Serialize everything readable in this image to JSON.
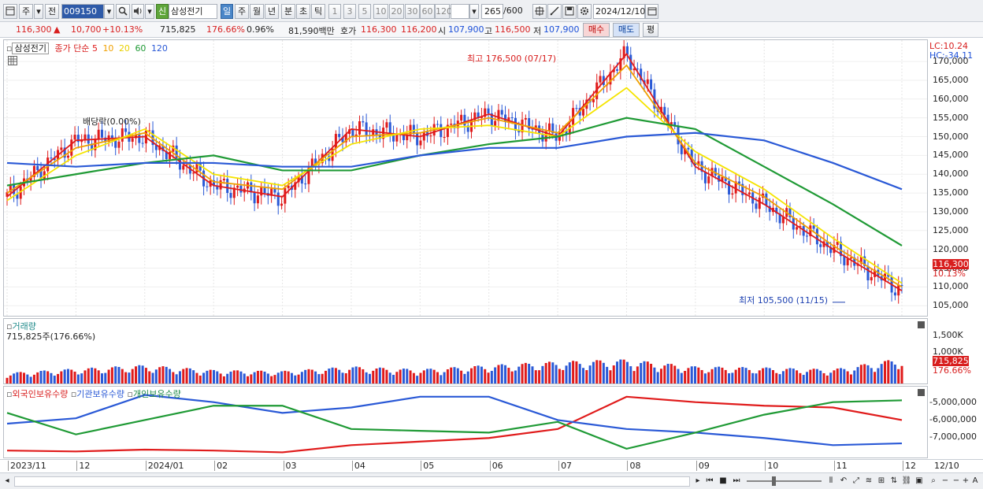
{
  "toolbar": {
    "type_label": "주",
    "prev_label": "전",
    "code": "009150",
    "shin_label": "신",
    "stock_name": "삼성전기",
    "periods": [
      "일",
      "주",
      "월",
      "년",
      "분",
      "초",
      "틱"
    ],
    "active_period": "일",
    "minute_values": [
      "1",
      "3",
      "5",
      "10",
      "20",
      "30",
      "60",
      "120"
    ],
    "count": "265",
    "count_max": "/600",
    "date": "2024/12/10",
    "icons": [
      "search-icon",
      "speaker-icon",
      "crosshair-icon",
      "draw-line-icon",
      "save-icon",
      "gear-icon",
      "calendar-icon"
    ]
  },
  "quote": {
    "price": "116,300",
    "up_arrow": "▲",
    "change": "10,700",
    "change_pct": "+10.13%",
    "volume": "715,825",
    "volume_ratio": "176.66%",
    "turnover": "0.96%",
    "value": "81,590백만",
    "hoga_label": "호가",
    "ask": "116,300",
    "bid": "116,200",
    "open_label": "시",
    "open": "107,900",
    "high_label": "고",
    "high": "116,500",
    "low_label": "저",
    "low": "107,900",
    "buy_label": "매수",
    "sell_label": "매도",
    "eval_label": "평"
  },
  "price_panel": {
    "stock_label": "삼성전기",
    "ma_title": "종가 단순",
    "ma_periods": [
      "5",
      "10",
      "20",
      "60",
      "120"
    ],
    "ma_colors": [
      "#e01b1b",
      "#f0a000",
      "#f5e400",
      "#1f9a35",
      "#2a59d6"
    ],
    "high_annotation": "최고 176,500 (07/17)",
    "low_annotation": "최저 105,500 (11/15)",
    "dividend_annotation": "배당락(0.00%)",
    "lc_label": "LC:10.24",
    "hc_label": "HC:-34.11",
    "y_ticks": [
      "170,000",
      "165,000",
      "160,000",
      "155,000",
      "150,000",
      "145,000",
      "140,000",
      "135,000",
      "130,000",
      "125,000",
      "120,000",
      "115,000",
      "110,000",
      "105,000"
    ],
    "current_price_tag": "116,300",
    "current_pct_tag": "10.13%"
  },
  "volume_panel": {
    "title": "거래량",
    "value_label": "715,825주(176.66%)",
    "y_ticks": [
      "1,500K",
      "1,000K"
    ],
    "current_tag": "715,825",
    "current_pct": "176.66%"
  },
  "holdings_panel": {
    "legend": [
      "외국인보유수량",
      "기관보유수량",
      "개인보유수량"
    ],
    "colors": [
      "#e01b1b",
      "#2a59d6",
      "#1f9a35"
    ],
    "y_ticks": [
      "-5,000,000",
      "-6,000,000",
      "-7,000,000"
    ]
  },
  "x_axis": {
    "labels": [
      "2023/11",
      "12",
      "2024/01",
      "02",
      "03",
      "04",
      "05",
      "06",
      "07",
      "08",
      "09",
      "10",
      "11",
      "12"
    ],
    "right_label": "12/10"
  },
  "chart_data": [
    {
      "type": "line",
      "title": "",
      "x": [
        "2023/11",
        "12",
        "2024/01",
        "02",
        "03",
        "04",
        "05",
        "06",
        "07",
        "08",
        "09",
        "10",
        "11",
        "12"
      ],
      "series": [
        {
          "name": "5",
          "values": [
            134000,
            149000,
            150000,
            137000,
            134000,
            152000,
            150000,
            156000,
            150000,
            172000,
            142000,
            132000,
            120000,
            109000
          ]
        },
        {
          "name": "10",
          "values": [
            135000,
            147000,
            151000,
            138000,
            136000,
            150000,
            151000,
            155000,
            151000,
            169000,
            143000,
            134000,
            121000,
            110000
          ]
        },
        {
          "name": "20",
          "values": [
            133000,
            145000,
            152000,
            140000,
            137000,
            148000,
            152000,
            153000,
            150000,
            163000,
            146000,
            136000,
            123000,
            111000
          ]
        },
        {
          "name": "60",
          "values": [
            137000,
            140000,
            143000,
            145000,
            141000,
            141000,
            145000,
            148000,
            150000,
            155000,
            152000,
            142000,
            132000,
            121000
          ]
        },
        {
          "name": "120",
          "values": [
            143000,
            142000,
            143000,
            143000,
            142000,
            142000,
            145000,
            147000,
            147000,
            150000,
            151000,
            149000,
            143000,
            136000
          ]
        }
      ],
      "ylim": [
        104000,
        174000
      ],
      "high": {
        "value": 176500,
        "date": "07/17"
      },
      "low": {
        "value": 105500,
        "date": "11/15"
      }
    },
    {
      "type": "bar",
      "title": "거래량",
      "categories": [
        "2023/11",
        "12",
        "2024/01",
        "02",
        "03",
        "04",
        "05",
        "06",
        "07",
        "08",
        "09",
        "10",
        "11",
        "12"
      ],
      "values": [
        300,
        420,
        520,
        380,
        350,
        480,
        400,
        520,
        620,
        680,
        480,
        450,
        400,
        715.825
      ],
      "ylim": [
        0,
        1800
      ]
    },
    {
      "type": "line",
      "title": "",
      "x": [
        "2023/11",
        "12",
        "2024/01",
        "02",
        "03",
        "04",
        "05",
        "06",
        "07",
        "08",
        "09",
        "10",
        "11",
        "12"
      ],
      "series": [
        {
          "name": "외국인보유수량",
          "values": [
            -8000000,
            -8050000,
            -7950000,
            -8000000,
            -8100000,
            -7700000,
            -7500000,
            -7300000,
            -6800000,
            -5000000,
            -5300000,
            -5500000,
            -5600000,
            -6300000
          ]
        },
        {
          "name": "기관보유수량",
          "values": [
            -6500000,
            -6200000,
            -4900000,
            -5300000,
            -5900000,
            -5600000,
            -5000000,
            -5000000,
            -6300000,
            -6800000,
            -7000000,
            -7300000,
            -7700000,
            -7600000
          ]
        },
        {
          "name": "개인보유수량",
          "values": [
            -5900000,
            -7100000,
            -6300000,
            -5500000,
            -5500000,
            -6800000,
            -6900000,
            -7000000,
            -6400000,
            -7900000,
            -7000000,
            -6000000,
            -5300000,
            -5200000
          ]
        }
      ],
      "ylim": [
        -8300000,
        -4700000
      ]
    }
  ]
}
